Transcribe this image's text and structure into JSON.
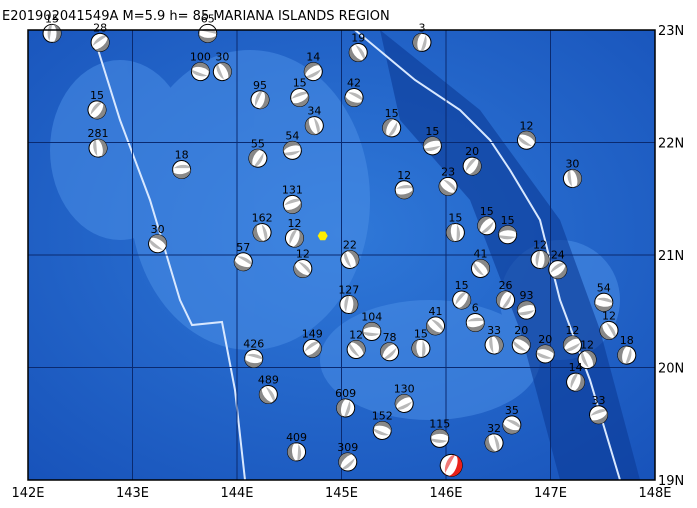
{
  "map": {
    "title": "E201902041549A M=5.9 h= 85 MARIANA ISLANDS REGION",
    "xlim": [
      142,
      148
    ],
    "ylim": [
      19,
      23
    ],
    "xticks": [
      {
        "value": 142,
        "label": "142E"
      },
      {
        "value": 143,
        "label": "143E"
      },
      {
        "value": 144,
        "label": "144E"
      },
      {
        "value": 145,
        "label": "145E"
      },
      {
        "value": 146,
        "label": "146E"
      },
      {
        "value": 147,
        "label": "147E"
      },
      {
        "value": 148,
        "label": "148E"
      }
    ],
    "yticks": [
      {
        "value": 19,
        "label": "19N"
      },
      {
        "value": 20,
        "label": "20N"
      },
      {
        "value": 21,
        "label": "21N"
      },
      {
        "value": 22,
        "label": "22N"
      },
      {
        "value": 23,
        "label": "23N"
      }
    ],
    "main_event": {
      "lon": 146.05,
      "lat": 19.13
    },
    "marker": {
      "lon": 144.82,
      "lat": 21.17
    },
    "events": [
      {
        "lon": 142.23,
        "lat": 22.97,
        "depth": 15
      },
      {
        "lon": 142.69,
        "lat": 22.89,
        "depth": 28
      },
      {
        "lon": 143.72,
        "lat": 22.97,
        "depth": 65
      },
      {
        "lon": 145.16,
        "lat": 22.8,
        "depth": 19
      },
      {
        "lon": 145.77,
        "lat": 22.89,
        "depth": 3
      },
      {
        "lon": 144.73,
        "lat": 22.63,
        "depth": 14
      },
      {
        "lon": 143.65,
        "lat": 22.63,
        "depth": 100
      },
      {
        "lon": 143.86,
        "lat": 22.63,
        "depth": 30
      },
      {
        "lon": 144.22,
        "lat": 22.38,
        "depth": 95
      },
      {
        "lon": 144.6,
        "lat": 22.4,
        "depth": 15
      },
      {
        "lon": 145.12,
        "lat": 22.4,
        "depth": 42
      },
      {
        "lon": 144.74,
        "lat": 22.15,
        "depth": 34
      },
      {
        "lon": 145.48,
        "lat": 22.13,
        "depth": 15
      },
      {
        "lon": 145.87,
        "lat": 21.97,
        "depth": 15
      },
      {
        "lon": 146.77,
        "lat": 22.02,
        "depth": 12
      },
      {
        "lon": 147.21,
        "lat": 21.68,
        "depth": 30
      },
      {
        "lon": 146.25,
        "lat": 21.79,
        "depth": 20
      },
      {
        "lon": 145.6,
        "lat": 21.58,
        "depth": 12
      },
      {
        "lon": 146.02,
        "lat": 21.61,
        "depth": 23
      },
      {
        "lon": 146.09,
        "lat": 21.2,
        "depth": 15
      },
      {
        "lon": 146.39,
        "lat": 21.26,
        "depth": 15
      },
      {
        "lon": 146.59,
        "lat": 21.18,
        "depth": 15
      },
      {
        "lon": 146.33,
        "lat": 20.88,
        "depth": 41
      },
      {
        "lon": 146.9,
        "lat": 20.96,
        "depth": 12
      },
      {
        "lon": 147.07,
        "lat": 20.87,
        "depth": 24
      },
      {
        "lon": 147.51,
        "lat": 20.58,
        "depth": 54
      },
      {
        "lon": 147.56,
        "lat": 20.33,
        "depth": 12
      },
      {
        "lon": 147.73,
        "lat": 20.11,
        "depth": 18
      },
      {
        "lon": 147.21,
        "lat": 20.2,
        "depth": 12
      },
      {
        "lon": 146.95,
        "lat": 20.12,
        "depth": 20
      },
      {
        "lon": 147.35,
        "lat": 20.07,
        "depth": 12
      },
      {
        "lon": 147.24,
        "lat": 19.87,
        "depth": 14
      },
      {
        "lon": 147.46,
        "lat": 19.58,
        "depth": 33
      },
      {
        "lon": 146.63,
        "lat": 19.49,
        "depth": 35
      },
      {
        "lon": 146.46,
        "lat": 19.33,
        "depth": 32
      },
      {
        "lon": 146.57,
        "lat": 20.6,
        "depth": 26
      },
      {
        "lon": 146.77,
        "lat": 20.51,
        "depth": 93
      },
      {
        "lon": 146.72,
        "lat": 20.2,
        "depth": 20
      },
      {
        "lon": 146.46,
        "lat": 20.2,
        "depth": 33
      },
      {
        "lon": 146.15,
        "lat": 20.6,
        "depth": 15
      },
      {
        "lon": 146.28,
        "lat": 20.4,
        "depth": 6
      },
      {
        "lon": 145.9,
        "lat": 20.37,
        "depth": 41
      },
      {
        "lon": 145.76,
        "lat": 20.17,
        "depth": 15
      },
      {
        "lon": 145.46,
        "lat": 20.14,
        "depth": 78
      },
      {
        "lon": 145.29,
        "lat": 20.32,
        "depth": 104
      },
      {
        "lon": 145.14,
        "lat": 20.16,
        "depth": 12
      },
      {
        "lon": 145.07,
        "lat": 20.56,
        "depth": 127
      },
      {
        "lon": 144.72,
        "lat": 20.17,
        "depth": 149
      },
      {
        "lon": 144.16,
        "lat": 20.08,
        "depth": 426
      },
      {
        "lon": 144.3,
        "lat": 19.76,
        "depth": 489
      },
      {
        "lon": 145.04,
        "lat": 19.64,
        "depth": 609
      },
      {
        "lon": 145.6,
        "lat": 19.68,
        "depth": 130
      },
      {
        "lon": 145.39,
        "lat": 19.44,
        "depth": 152
      },
      {
        "lon": 145.08,
        "lat": 20.96,
        "depth": 22
      },
      {
        "lon": 144.55,
        "lat": 21.15,
        "depth": 12
      },
      {
        "lon": 144.53,
        "lat": 21.45,
        "depth": 131
      },
      {
        "lon": 144.06,
        "lat": 20.94,
        "depth": 57
      },
      {
        "lon": 144.24,
        "lat": 21.2,
        "depth": 162
      },
      {
        "lon": 144.2,
        "lat": 21.86,
        "depth": 55
      },
      {
        "lon": 144.53,
        "lat": 21.93,
        "depth": 54
      },
      {
        "lon": 143.24,
        "lat": 21.1,
        "depth": 30
      },
      {
        "lon": 142.67,
        "lat": 21.95,
        "depth": 281
      },
      {
        "lon": 142.66,
        "lat": 22.29,
        "depth": 15
      },
      {
        "lon": 143.47,
        "lat": 21.76,
        "depth": 18
      },
      {
        "lon": 144.63,
        "lat": 20.88,
        "depth": 12
      },
      {
        "lon": 144.57,
        "lat": 19.25,
        "depth": 409
      },
      {
        "lon": 145.06,
        "lat": 19.16,
        "depth": 309
      },
      {
        "lon": 145.94,
        "lat": 19.37,
        "depth": 115
      }
    ]
  }
}
